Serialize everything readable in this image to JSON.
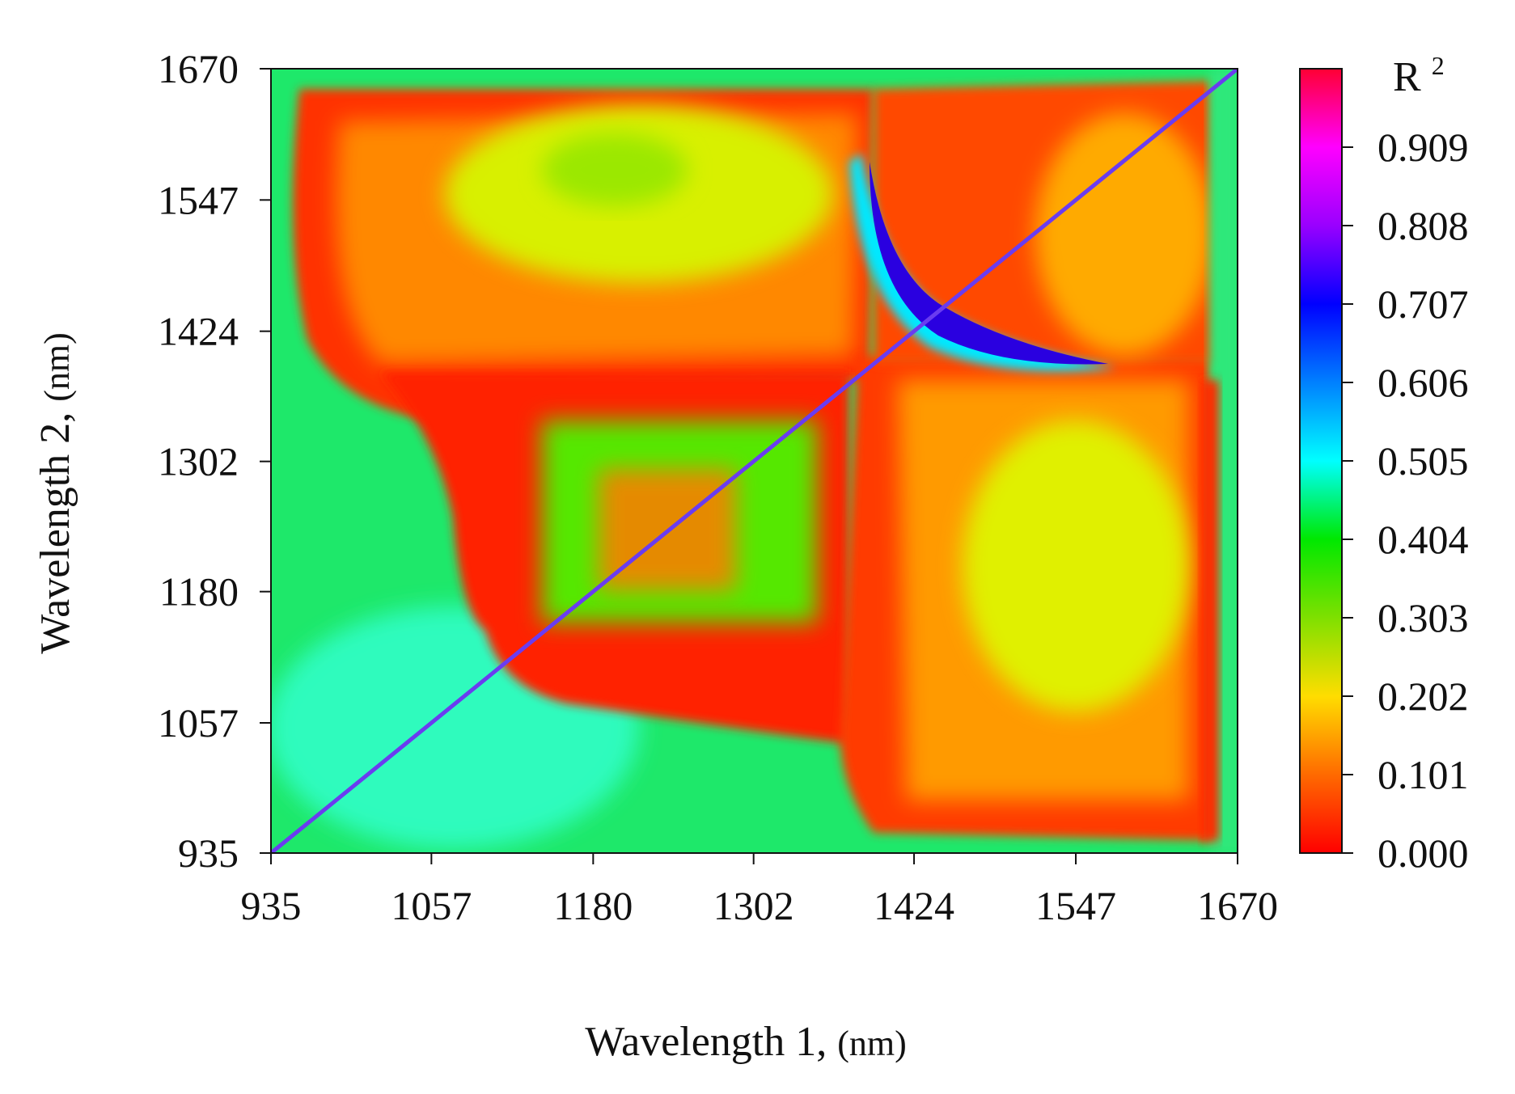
{
  "chart_data": {
    "type": "heatmap",
    "title": "",
    "xlabel": "Wavelength 1,",
    "xlabel_unit": "(nm)",
    "ylabel": "Wavelength 2,",
    "ylabel_unit": "(nm)",
    "x_ticks": [
      "935",
      "1057",
      "1180",
      "1302",
      "1424",
      "1547",
      "1670"
    ],
    "y_ticks": [
      "935",
      "1057",
      "1180",
      "1302",
      "1424",
      "1547",
      "1670"
    ],
    "xlim": [
      935,
      1670
    ],
    "ylim": [
      935,
      1670
    ],
    "colorbar": {
      "label_base": "R",
      "label_sup": "2",
      "ticks": [
        "0.000",
        "0.101",
        "0.202",
        "0.303",
        "0.404",
        "0.505",
        "0.606",
        "0.707",
        "0.808",
        "0.909"
      ],
      "range": [
        0,
        1.01
      ],
      "colors": [
        "#ff0000",
        "#ff8c00",
        "#ffff00",
        "#00e800",
        "#00ffff",
        "#0000ff",
        "#9900ff",
        "#ff00ff",
        "#ff0040"
      ]
    },
    "regions": [
      {
        "name": "background",
        "r2": 0.44
      },
      {
        "name": "upper-left-band",
        "x": [
          960,
          1380
        ],
        "y": [
          1400,
          1655
        ],
        "r2": 0.08
      },
      {
        "name": "upper-left-band-yellow-core",
        "x": [
          1180,
          1330
        ],
        "y": [
          1500,
          1620
        ],
        "r2": 0.22
      },
      {
        "name": "lower-right-band",
        "x": [
          1380,
          1640
        ],
        "y": [
          970,
          1390
        ],
        "r2": 0.1
      },
      {
        "name": "lower-right-yellow-core",
        "x": [
          1470,
          1600
        ],
        "y": [
          1130,
          1300
        ],
        "r2": 0.24
      },
      {
        "name": "upper-right-band",
        "x": [
          1390,
          1655
        ],
        "y": [
          1390,
          1665
        ],
        "r2": 0.12
      },
      {
        "name": "mid-stepped-region",
        "x": [
          1090,
          1350
        ],
        "y": [
          1080,
          1390
        ],
        "r2": 0.08
      },
      {
        "name": "mid-green-patch",
        "x": [
          1140,
          1330
        ],
        "y": [
          1140,
          1330
        ],
        "r2": 0.34
      },
      {
        "name": "lower-left-cyan",
        "x": [
          1010,
          1180
        ],
        "y": [
          960,
          1140
        ],
        "r2": 0.48
      },
      {
        "name": "blue-crescent",
        "x": [
          1390,
          1580
        ],
        "y": [
          1380,
          1590
        ],
        "r2": 0.69
      }
    ],
    "diagonal_r2": 0.8
  }
}
